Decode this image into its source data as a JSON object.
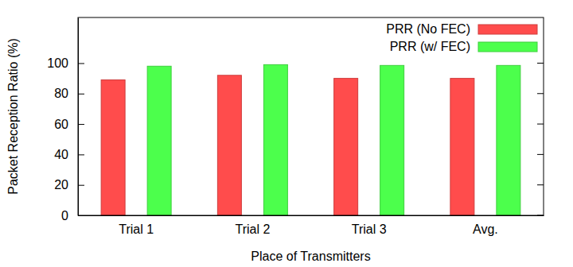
{
  "chart_data": {
    "type": "bar",
    "x_label": "Place of Transmitters",
    "y_label": "Packet Reception Ratio (%)",
    "categories": [
      "Trial 1",
      "Trial 2",
      "Trial 3",
      "Avg."
    ],
    "series": [
      {
        "name": "PRR (No FEC)",
        "color": "#ff4c4c",
        "values": [
          89,
          92,
          90,
          90
        ]
      },
      {
        "name": "PRR (w/ FEC)",
        "color": "#4cff4c",
        "values": [
          98,
          99,
          98.5,
          98.5
        ]
      }
    ],
    "ylim": [
      0,
      130
    ],
    "yticks": [
      0,
      20,
      40,
      60,
      80,
      100
    ],
    "grid": false,
    "legend": "top-right"
  }
}
